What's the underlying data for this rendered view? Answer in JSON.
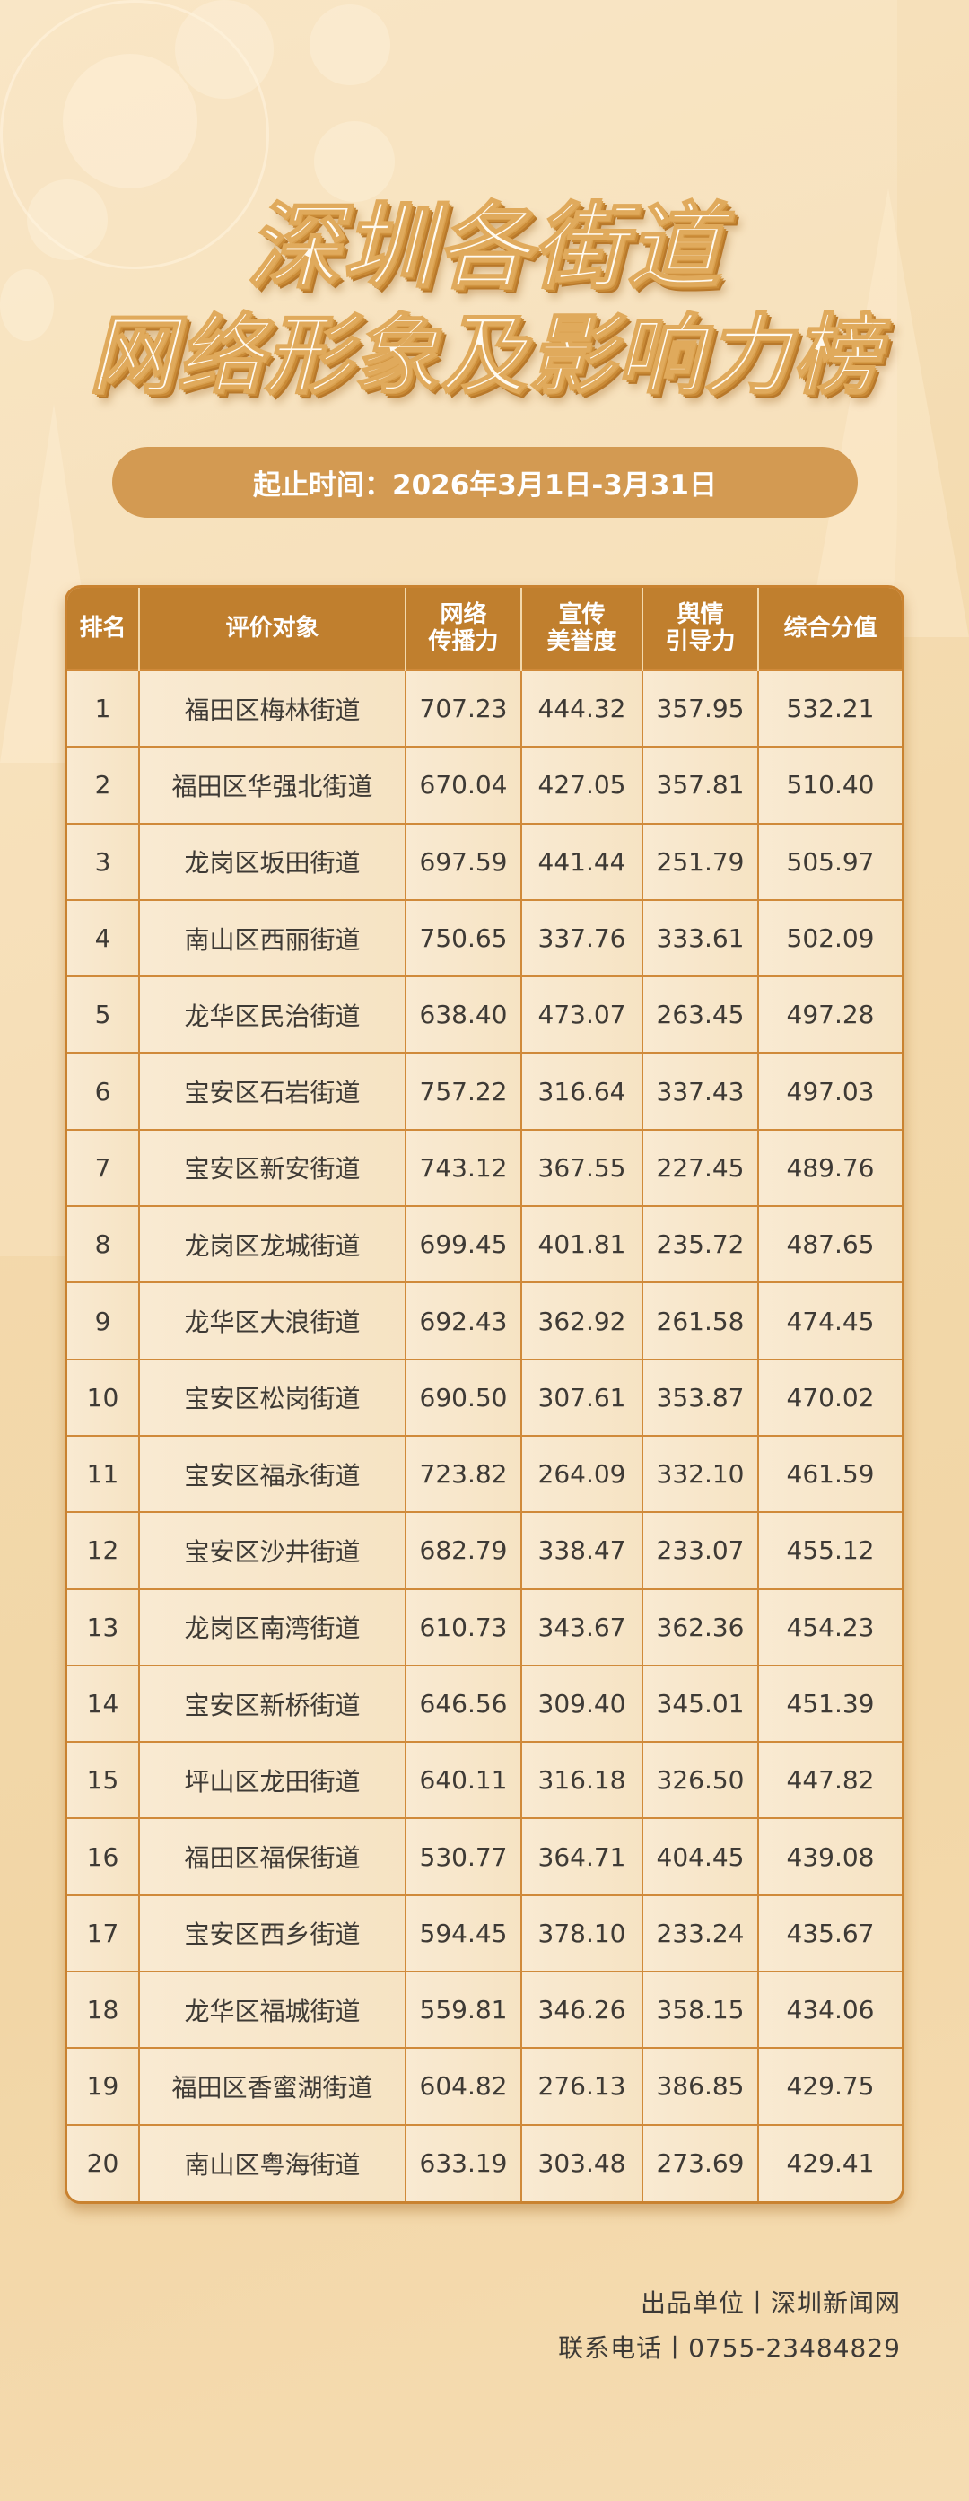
{
  "title": {
    "line1": "深圳各街道",
    "line2": "网络形象及影响力榜"
  },
  "period": "起止时间：2026年3月1日-3月31日",
  "table": {
    "headers": [
      "排名",
      "评价对象",
      "网络\n传播力",
      "宣传\n美誉度",
      "舆情\n引导力",
      "综合分值"
    ],
    "header_lines": [
      [
        "排名"
      ],
      [
        "评价对象"
      ],
      [
        "网络",
        "传播力"
      ],
      [
        "宣传",
        "美誉度"
      ],
      [
        "舆情",
        "引导力"
      ],
      [
        "综合分值"
      ]
    ],
    "rows": [
      [
        "1",
        "福田区梅林街道",
        "707.23",
        "444.32",
        "357.95",
        "532.21"
      ],
      [
        "2",
        "福田区华强北街道",
        "670.04",
        "427.05",
        "357.81",
        "510.40"
      ],
      [
        "3",
        "龙岗区坂田街道",
        "697.59",
        "441.44",
        "251.79",
        "505.97"
      ],
      [
        "4",
        "南山区西丽街道",
        "750.65",
        "337.76",
        "333.61",
        "502.09"
      ],
      [
        "5",
        "龙华区民治街道",
        "638.40",
        "473.07",
        "263.45",
        "497.28"
      ],
      [
        "6",
        "宝安区石岩街道",
        "757.22",
        "316.64",
        "337.43",
        "497.03"
      ],
      [
        "7",
        "宝安区新安街道",
        "743.12",
        "367.55",
        "227.45",
        "489.76"
      ],
      [
        "8",
        "龙岗区龙城街道",
        "699.45",
        "401.81",
        "235.72",
        "487.65"
      ],
      [
        "9",
        "龙华区大浪街道",
        "692.43",
        "362.92",
        "261.58",
        "474.45"
      ],
      [
        "10",
        "宝安区松岗街道",
        "690.50",
        "307.61",
        "353.87",
        "470.02"
      ],
      [
        "11",
        "宝安区福永街道",
        "723.82",
        "264.09",
        "332.10",
        "461.59"
      ],
      [
        "12",
        "宝安区沙井街道",
        "682.79",
        "338.47",
        "233.07",
        "455.12"
      ],
      [
        "13",
        "龙岗区南湾街道",
        "610.73",
        "343.67",
        "362.36",
        "454.23"
      ],
      [
        "14",
        "宝安区新桥街道",
        "646.56",
        "309.40",
        "345.01",
        "451.39"
      ],
      [
        "15",
        "坪山区龙田街道",
        "640.11",
        "316.18",
        "326.50",
        "447.82"
      ],
      [
        "16",
        "福田区福保街道",
        "530.77",
        "364.71",
        "404.45",
        "439.08"
      ],
      [
        "17",
        "宝安区西乡街道",
        "594.45",
        "378.10",
        "233.24",
        "435.67"
      ],
      [
        "18",
        "龙华区福城街道",
        "559.81",
        "346.26",
        "358.15",
        "434.06"
      ],
      [
        "19",
        "福田区香蜜湖街道",
        "604.82",
        "276.13",
        "386.85",
        "429.75"
      ],
      [
        "20",
        "南山区粤海街道",
        "633.19",
        "303.48",
        "273.69",
        "429.41"
      ]
    ]
  },
  "footer": {
    "producer": "出品单位丨深圳新闻网",
    "phone": "联系电话丨0755-23484829"
  },
  "colors": {
    "header": "#c07f2e",
    "pill": "#d39a52",
    "border": "#d08a3a",
    "background": "#f3d9ac"
  },
  "icons": [
    "wifi-icon",
    "cloud-icon",
    "cloud-download-icon",
    "share-icon",
    "mobile-signal-icon"
  ]
}
